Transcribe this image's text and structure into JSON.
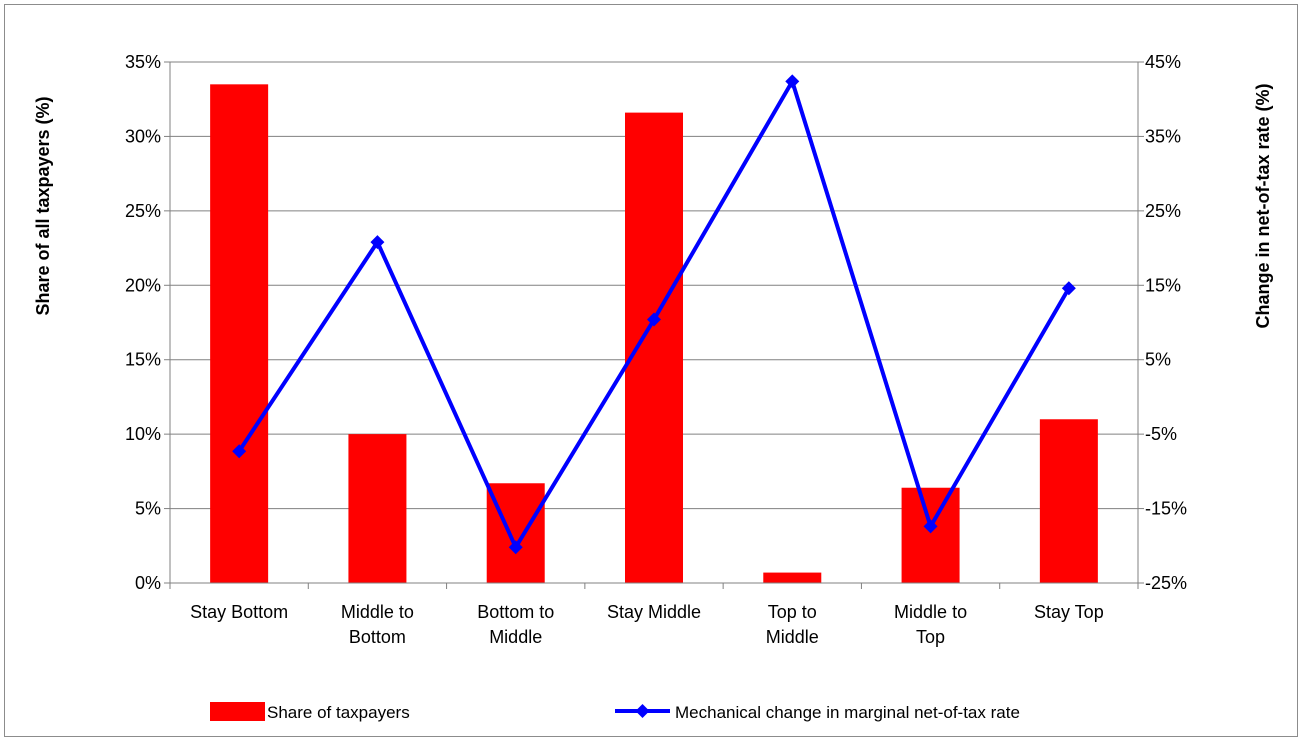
{
  "chart_data": {
    "type": "bar+line",
    "categories": [
      [
        "Stay Bottom"
      ],
      [
        "Middle to",
        "Bottom"
      ],
      [
        "Bottom to",
        "Middle"
      ],
      [
        "Stay Middle"
      ],
      [
        "Top to",
        "Middle"
      ],
      [
        "Middle to",
        "Top"
      ],
      [
        "Stay Top"
      ]
    ],
    "bar_series": {
      "name": "Share of taxpayers",
      "color": "#ff0000",
      "axis": "left",
      "values": [
        33.5,
        10.0,
        6.7,
        31.6,
        0.7,
        6.4,
        11.0
      ]
    },
    "line_series": {
      "name": "Mechanical change in marginal net-of-tax rate",
      "color": "#0000ff",
      "axis": "right",
      "marker": "diamond",
      "values": [
        -7.3,
        20.8,
        -20.2,
        10.4,
        42.4,
        -17.4,
        14.6
      ]
    },
    "left_axis": {
      "label": "Share of all taxpayers (%)",
      "ylim": [
        0,
        35
      ],
      "ticks": [
        0,
        5,
        10,
        15,
        20,
        25,
        30,
        35
      ],
      "tick_labels": [
        "0%",
        "5%",
        "10%",
        "15%",
        "20%",
        "25%",
        "30%",
        "35%"
      ]
    },
    "right_axis": {
      "label": "Change in net-of-tax rate (%)",
      "ylim": [
        -25,
        45
      ],
      "ticks": [
        -25,
        -15,
        -5,
        5,
        15,
        25,
        35,
        45
      ],
      "tick_labels": [
        "-25%",
        "-15%",
        "-5%",
        "5%",
        "15%",
        "25%",
        "35%",
        "45%"
      ]
    },
    "grid": true,
    "legend_position": "bottom"
  }
}
